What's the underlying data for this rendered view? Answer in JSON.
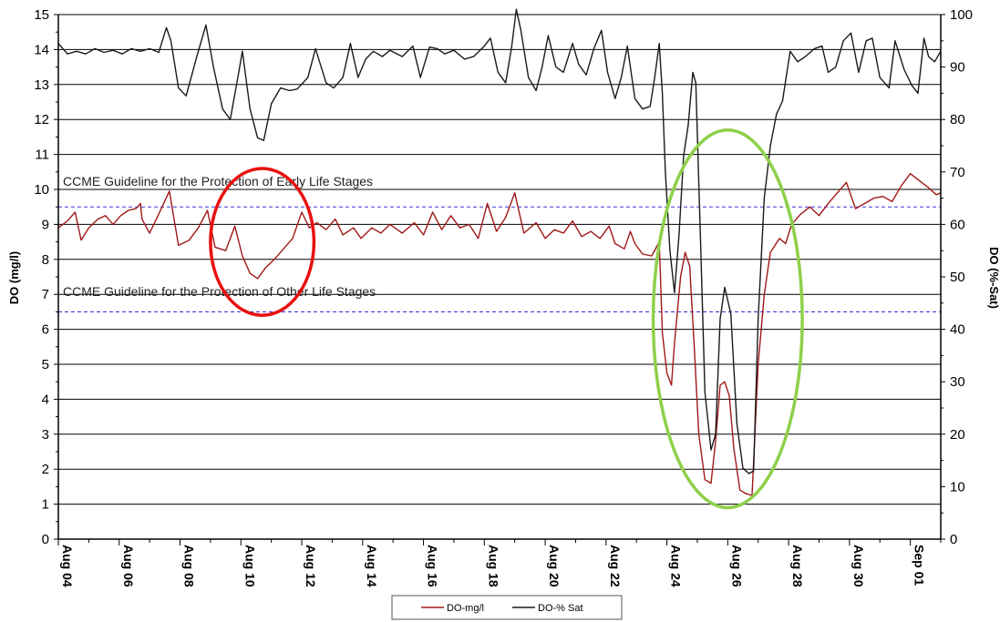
{
  "chart_data": {
    "type": "line",
    "ylabel": "DO (mg/l)",
    "y2label": "DO (%-Sat)",
    "ylim": [
      0,
      15
    ],
    "y2lim": [
      0,
      100
    ],
    "yticks": [
      0,
      1,
      2,
      3,
      4,
      5,
      6,
      7,
      8,
      9,
      10,
      11,
      12,
      13,
      14,
      15
    ],
    "y2ticks": [
      0,
      10,
      20,
      30,
      40,
      50,
      60,
      70,
      80,
      90,
      100
    ],
    "xlim": [
      4,
      33
    ],
    "xticks": [
      {
        "x": 4,
        "label": "Aug 04"
      },
      {
        "x": 6,
        "label": "Aug 06"
      },
      {
        "x": 8,
        "label": "Aug 08"
      },
      {
        "x": 10,
        "label": "Aug 10"
      },
      {
        "x": 12,
        "label": "Aug 12"
      },
      {
        "x": 14,
        "label": "Aug 14"
      },
      {
        "x": 16,
        "label": "Aug 16"
      },
      {
        "x": 18,
        "label": "Aug 18"
      },
      {
        "x": 20,
        "label": "Aug 20"
      },
      {
        "x": 22,
        "label": "Aug 22"
      },
      {
        "x": 24,
        "label": "Aug 24"
      },
      {
        "x": 26,
        "label": "Aug 26"
      },
      {
        "x": 28,
        "label": "Aug 28"
      },
      {
        "x": 30,
        "label": "Aug 30"
      },
      {
        "x": 32,
        "label": "Sep 01"
      }
    ],
    "grid": true,
    "guidelines": [
      {
        "label": "CCME Guideline for the Protection of Early Life Stages",
        "value": 9.5,
        "color": "#3a3adf"
      },
      {
        "label": "CCME Guideline for the Protection of Other Life Stages",
        "value": 6.5,
        "color": "#2020d0"
      }
    ],
    "series": [
      {
        "name": "DO-mg/l",
        "axis": "left",
        "color": "#a01818",
        "points": [
          [
            4.0,
            8.9
          ],
          [
            4.3,
            9.1
          ],
          [
            4.55,
            9.35
          ],
          [
            4.75,
            8.55
          ],
          [
            5.0,
            8.9
          ],
          [
            5.3,
            9.15
          ],
          [
            5.55,
            9.25
          ],
          [
            5.8,
            9.0
          ],
          [
            6.05,
            9.25
          ],
          [
            6.3,
            9.4
          ],
          [
            6.55,
            9.45
          ],
          [
            6.7,
            9.6
          ],
          [
            6.75,
            9.15
          ],
          [
            7.0,
            8.75
          ],
          [
            7.3,
            9.3
          ],
          [
            7.65,
            9.95
          ],
          [
            7.95,
            8.4
          ],
          [
            8.3,
            8.55
          ],
          [
            8.6,
            8.9
          ],
          [
            8.9,
            9.4
          ],
          [
            9.15,
            8.35
          ],
          [
            9.5,
            8.25
          ],
          [
            9.8,
            8.95
          ],
          [
            10.05,
            8.1
          ],
          [
            10.3,
            7.6
          ],
          [
            10.55,
            7.45
          ],
          [
            10.8,
            7.75
          ],
          [
            11.1,
            8.0
          ],
          [
            11.4,
            8.3
          ],
          [
            11.7,
            8.6
          ],
          [
            12.0,
            9.35
          ],
          [
            12.25,
            8.9
          ],
          [
            12.5,
            9.05
          ],
          [
            12.8,
            8.85
          ],
          [
            13.1,
            9.15
          ],
          [
            13.35,
            8.7
          ],
          [
            13.7,
            8.9
          ],
          [
            13.95,
            8.6
          ],
          [
            14.3,
            8.9
          ],
          [
            14.6,
            8.75
          ],
          [
            14.9,
            9.0
          ],
          [
            15.3,
            8.75
          ],
          [
            15.7,
            9.05
          ],
          [
            16.0,
            8.7
          ],
          [
            16.3,
            9.35
          ],
          [
            16.6,
            8.85
          ],
          [
            16.9,
            9.25
          ],
          [
            17.2,
            8.9
          ],
          [
            17.5,
            9.0
          ],
          [
            17.8,
            8.6
          ],
          [
            18.1,
            9.6
          ],
          [
            18.4,
            8.8
          ],
          [
            18.7,
            9.2
          ],
          [
            19.0,
            9.9
          ],
          [
            19.3,
            8.75
          ],
          [
            19.7,
            9.05
          ],
          [
            20.0,
            8.6
          ],
          [
            20.3,
            8.85
          ],
          [
            20.6,
            8.75
          ],
          [
            20.9,
            9.1
          ],
          [
            21.2,
            8.65
          ],
          [
            21.5,
            8.8
          ],
          [
            21.8,
            8.6
          ],
          [
            22.1,
            8.95
          ],
          [
            22.3,
            8.45
          ],
          [
            22.6,
            8.3
          ],
          [
            22.8,
            8.8
          ],
          [
            22.95,
            8.45
          ],
          [
            23.2,
            8.15
          ],
          [
            23.5,
            8.1
          ],
          [
            23.75,
            8.5
          ],
          [
            23.85,
            5.9
          ],
          [
            24.0,
            4.75
          ],
          [
            24.15,
            4.4
          ],
          [
            24.25,
            5.6
          ],
          [
            24.45,
            7.5
          ],
          [
            24.6,
            8.2
          ],
          [
            24.75,
            7.8
          ],
          [
            24.9,
            5.5
          ],
          [
            25.05,
            3.0
          ],
          [
            25.25,
            1.7
          ],
          [
            25.45,
            1.6
          ],
          [
            25.6,
            2.8
          ],
          [
            25.75,
            4.4
          ],
          [
            25.9,
            4.5
          ],
          [
            26.05,
            4.1
          ],
          [
            26.2,
            2.6
          ],
          [
            26.4,
            1.4
          ],
          [
            26.6,
            1.3
          ],
          [
            26.8,
            1.25
          ],
          [
            27.0,
            5.0
          ],
          [
            27.2,
            7.0
          ],
          [
            27.4,
            8.2
          ],
          [
            27.7,
            8.6
          ],
          [
            27.9,
            8.45
          ],
          [
            28.1,
            9.0
          ],
          [
            28.4,
            9.3
          ],
          [
            28.7,
            9.5
          ],
          [
            29.0,
            9.25
          ],
          [
            29.3,
            9.6
          ],
          [
            29.6,
            9.9
          ],
          [
            29.9,
            10.2
          ],
          [
            30.2,
            9.45
          ],
          [
            30.5,
            9.6
          ],
          [
            30.8,
            9.75
          ],
          [
            31.1,
            9.8
          ],
          [
            31.4,
            9.65
          ],
          [
            31.7,
            10.1
          ],
          [
            32.0,
            10.45
          ],
          [
            32.3,
            10.25
          ],
          [
            32.6,
            10.05
          ],
          [
            32.85,
            9.85
          ],
          [
            33.0,
            9.9
          ]
        ]
      },
      {
        "name": "DO-% Sat",
        "axis": "right",
        "color": "#1a1a1a",
        "points": [
          [
            4.0,
            94.5
          ],
          [
            4.3,
            92.5
          ],
          [
            4.6,
            93.0
          ],
          [
            4.9,
            92.5
          ],
          [
            5.2,
            93.5
          ],
          [
            5.5,
            92.8
          ],
          [
            5.8,
            93.2
          ],
          [
            6.1,
            92.5
          ],
          [
            6.4,
            93.5
          ],
          [
            6.7,
            93.0
          ],
          [
            7.0,
            93.5
          ],
          [
            7.3,
            92.8
          ],
          [
            7.55,
            97.5
          ],
          [
            7.7,
            95.0
          ],
          [
            7.95,
            86.0
          ],
          [
            8.2,
            84.5
          ],
          [
            8.55,
            92.0
          ],
          [
            8.85,
            98.0
          ],
          [
            9.1,
            90.0
          ],
          [
            9.4,
            82.0
          ],
          [
            9.65,
            80.0
          ],
          [
            9.9,
            88.0
          ],
          [
            10.05,
            93.0
          ],
          [
            10.3,
            82.0
          ],
          [
            10.55,
            76.5
          ],
          [
            10.75,
            76.0
          ],
          [
            11.0,
            83.0
          ],
          [
            11.3,
            86.0
          ],
          [
            11.6,
            85.5
          ],
          [
            11.85,
            85.8
          ],
          [
            12.2,
            88.0
          ],
          [
            12.45,
            93.5
          ],
          [
            12.8,
            87.0
          ],
          [
            13.05,
            86.0
          ],
          [
            13.35,
            88.0
          ],
          [
            13.6,
            94.5
          ],
          [
            13.85,
            88.0
          ],
          [
            14.1,
            91.5
          ],
          [
            14.35,
            93.0
          ],
          [
            14.65,
            92.0
          ],
          [
            14.9,
            93.2
          ],
          [
            15.3,
            92.0
          ],
          [
            15.65,
            94.0
          ],
          [
            15.9,
            88.0
          ],
          [
            16.2,
            93.8
          ],
          [
            16.45,
            93.5
          ],
          [
            16.7,
            92.5
          ],
          [
            17.0,
            93.2
          ],
          [
            17.35,
            91.5
          ],
          [
            17.65,
            92.0
          ],
          [
            18.0,
            94.0
          ],
          [
            18.2,
            95.5
          ],
          [
            18.45,
            89.0
          ],
          [
            18.7,
            87.0
          ],
          [
            18.9,
            94.0
          ],
          [
            19.05,
            101.0
          ],
          [
            19.2,
            97.0
          ],
          [
            19.45,
            88.0
          ],
          [
            19.7,
            85.5
          ],
          [
            19.9,
            90.0
          ],
          [
            20.1,
            96.0
          ],
          [
            20.35,
            90.0
          ],
          [
            20.6,
            89.0
          ],
          [
            20.9,
            94.5
          ],
          [
            21.1,
            90.5
          ],
          [
            21.35,
            88.5
          ],
          [
            21.6,
            93.5
          ],
          [
            21.85,
            97.0
          ],
          [
            22.05,
            89.0
          ],
          [
            22.3,
            84.0
          ],
          [
            22.5,
            88.0
          ],
          [
            22.7,
            94.0
          ],
          [
            22.95,
            84.0
          ],
          [
            23.2,
            82.0
          ],
          [
            23.45,
            82.5
          ],
          [
            23.6,
            88.0
          ],
          [
            23.75,
            94.5
          ],
          [
            23.85,
            85.0
          ],
          [
            23.95,
            70.0
          ],
          [
            24.1,
            55.0
          ],
          [
            24.25,
            47.0
          ],
          [
            24.4,
            58.0
          ],
          [
            24.55,
            73.0
          ],
          [
            24.7,
            79.0
          ],
          [
            24.85,
            89.0
          ],
          [
            24.95,
            87.0
          ],
          [
            25.1,
            58.0
          ],
          [
            25.25,
            28.0
          ],
          [
            25.45,
            17.0
          ],
          [
            25.6,
            20.0
          ],
          [
            25.75,
            42.0
          ],
          [
            25.9,
            48.0
          ],
          [
            26.1,
            43.0
          ],
          [
            26.3,
            22.0
          ],
          [
            26.5,
            13.5
          ],
          [
            26.7,
            12.5
          ],
          [
            26.85,
            13.0
          ],
          [
            27.0,
            42.0
          ],
          [
            27.2,
            65.0
          ],
          [
            27.4,
            75.0
          ],
          [
            27.6,
            81.0
          ],
          [
            27.8,
            83.5
          ],
          [
            28.05,
            93.0
          ],
          [
            28.3,
            91.0
          ],
          [
            28.55,
            92.0
          ],
          [
            28.85,
            93.5
          ],
          [
            29.1,
            94.0
          ],
          [
            29.3,
            89.0
          ],
          [
            29.55,
            90.0
          ],
          [
            29.8,
            95.0
          ],
          [
            30.05,
            96.5
          ],
          [
            30.3,
            89.0
          ],
          [
            30.55,
            95.0
          ],
          [
            30.75,
            95.5
          ],
          [
            31.0,
            88.0
          ],
          [
            31.3,
            86.0
          ],
          [
            31.5,
            95.0
          ],
          [
            31.8,
            89.5
          ],
          [
            32.05,
            86.5
          ],
          [
            32.25,
            85.0
          ],
          [
            32.45,
            95.5
          ],
          [
            32.6,
            92.0
          ],
          [
            32.8,
            91.0
          ],
          [
            33.0,
            93.0
          ]
        ]
      }
    ],
    "annotations": [
      {
        "shape": "ellipse",
        "color": "#e81010",
        "cx": 10.7,
        "cy": 8.5,
        "rx": 1.7,
        "ry": 2.1
      },
      {
        "shape": "ellipse",
        "color": "#8ed04a",
        "cx": 26.0,
        "cy": 6.3,
        "rx": 2.45,
        "ry": 5.4
      }
    ],
    "legend": {
      "position": "bottom",
      "entries": [
        "DO-mg/l",
        "DO-% Sat"
      ]
    }
  }
}
